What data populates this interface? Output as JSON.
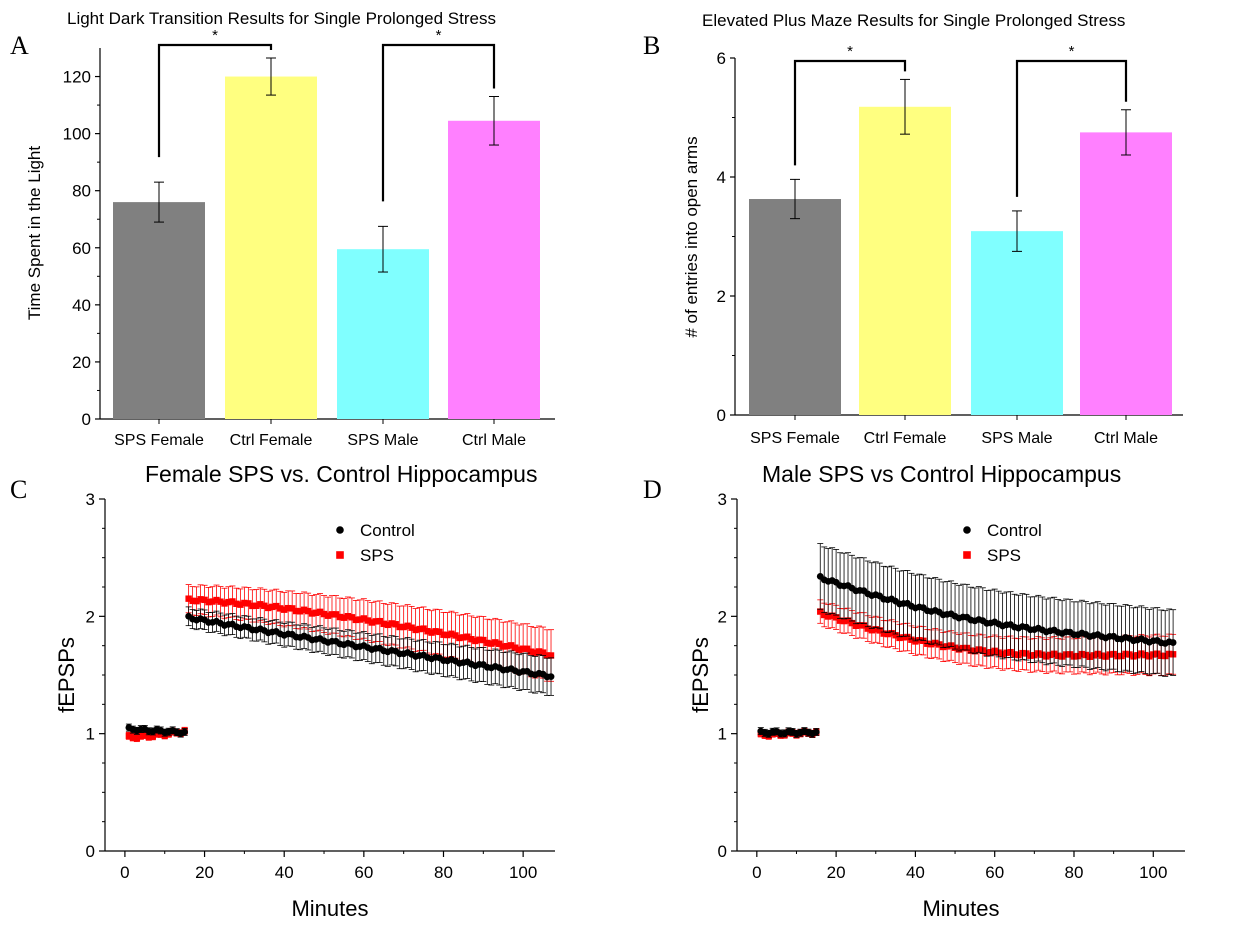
{
  "chart_data": [
    {
      "panel": "A",
      "type": "bar",
      "title": "Light Dark Transition Results for Single Prolonged Stress",
      "xlabel": "",
      "ylabel": "Time Spent in the Light",
      "categories": [
        "SPS Female",
        "Ctrl Female",
        "SPS Male",
        "Ctrl Male"
      ],
      "values": [
        76,
        120,
        59.5,
        104.5
      ],
      "errors": [
        7,
        6.5,
        8,
        8.5
      ],
      "colors": [
        "#808080",
        "#ffff80",
        "#80ffff",
        "#ff80ff"
      ],
      "ylim": [
        0,
        130
      ],
      "yticks": [
        0,
        20,
        40,
        60,
        80,
        100,
        120
      ],
      "significance": [
        {
          "from": 0,
          "to": 1,
          "label": "*"
        },
        {
          "from": 2,
          "to": 3,
          "label": "*"
        }
      ]
    },
    {
      "panel": "B",
      "type": "bar",
      "title": "Elevated Plus Maze Results for Single Prolonged Stress",
      "xlabel": "",
      "ylabel": "# of entries into open arms",
      "categories": [
        "SPS Female",
        "Ctrl Female",
        "SPS Male",
        "Ctrl Male"
      ],
      "values": [
        3.63,
        5.18,
        3.09,
        4.75
      ],
      "errors": [
        0.33,
        0.46,
        0.34,
        0.38
      ],
      "colors": [
        "#808080",
        "#ffff80",
        "#80ffff",
        "#ff80ff"
      ],
      "ylim": [
        0,
        6
      ],
      "yticks": [
        0,
        2,
        4,
        6
      ],
      "significance": [
        {
          "from": 0,
          "to": 1,
          "label": "*"
        },
        {
          "from": 2,
          "to": 3,
          "label": "*"
        }
      ]
    },
    {
      "panel": "C",
      "type": "scatter",
      "title": "Female SPS vs. Control Hippocampus",
      "xlabel": "Minutes",
      "ylabel": "fEPSPs",
      "xlim": [
        -5,
        108
      ],
      "ylim": [
        0,
        3
      ],
      "xticks": [
        0,
        20,
        40,
        60,
        80,
        100
      ],
      "yticks": [
        0,
        1,
        2,
        3
      ],
      "legend_position": "top-center",
      "series": [
        {
          "name": "Control",
          "color": "#000000",
          "marker": "circle",
          "segments": [
            {
              "x_start": 1,
              "x_end": 15,
              "x_step": 1,
              "y_start": 1.04,
              "y_end": 1.01,
              "err_start": 0.03,
              "err_end": 0.03,
              "dip": 0
            },
            {
              "x_start": 16,
              "x_end": 107,
              "x_step": 1,
              "y_start": 1.99,
              "y_end": 1.49,
              "err_start": 0.08,
              "err_end": 0.16,
              "dip": 0
            }
          ],
          "decay": 0.95
        },
        {
          "name": "SPS",
          "color": "#ff0000",
          "marker": "square",
          "segments": [
            {
              "x_start": 1,
              "x_end": 15,
              "x_step": 1,
              "y_start": 0.97,
              "y_end": 1.02,
              "err_start": 0.03,
              "err_end": 0.03,
              "dip": 0
            },
            {
              "x_start": 16,
              "x_end": 107,
              "x_step": 1,
              "y_start": 2.14,
              "y_end": 1.67,
              "err_start": 0.12,
              "err_end": 0.22,
              "dip": 0
            }
          ],
          "decay": 1.4
        }
      ]
    },
    {
      "panel": "D",
      "type": "scatter",
      "title": "Male SPS vs Control Hippocampus",
      "xlabel": "Minutes",
      "ylabel": "fEPSPs",
      "xlim": [
        -5,
        108
      ],
      "ylim": [
        0,
        3
      ],
      "xticks": [
        0,
        20,
        40,
        60,
        80,
        100
      ],
      "yticks": [
        0,
        1,
        2,
        3
      ],
      "legend_position": "top-center",
      "series": [
        {
          "name": "Control",
          "color": "#000000",
          "marker": "circle",
          "segments": [
            {
              "x_start": 1,
              "x_end": 15,
              "x_step": 1,
              "y_start": 1.01,
              "y_end": 1.01,
              "err_start": 0.03,
              "err_end": 0.03,
              "dip": 0
            },
            {
              "x_start": 16,
              "x_end": 105,
              "x_step": 1,
              "y_start": 2.33,
              "y_end": 1.77,
              "err_start": 0.28,
              "err_end": 0.28,
              "dip": 0.5
            }
          ],
          "decay": 1.0
        },
        {
          "name": "SPS",
          "color": "#ff0000",
          "marker": "square",
          "segments": [
            {
              "x_start": 1,
              "x_end": 15,
              "x_step": 1,
              "y_start": 0.99,
              "y_end": 1.01,
              "err_start": 0.03,
              "err_end": 0.03,
              "dip": 0
            },
            {
              "x_start": 16,
              "x_end": 105,
              "x_step": 1,
              "y_start": 2.03,
              "y_end": 1.67,
              "err_start": 0.1,
              "err_end": 0.17,
              "dip": 0.7
            }
          ],
          "decay": 1.0
        }
      ]
    }
  ]
}
